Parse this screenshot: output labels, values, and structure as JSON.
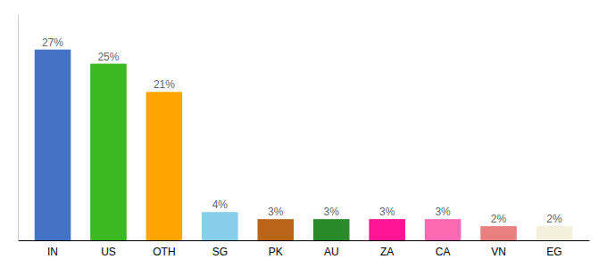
{
  "chart_data": {
    "type": "bar",
    "categories": [
      "IN",
      "US",
      "OTH",
      "SG",
      "PK",
      "AU",
      "ZA",
      "CA",
      "VN",
      "EG"
    ],
    "values": [
      27,
      25,
      21,
      4,
      3,
      3,
      3,
      3,
      2,
      2
    ],
    "value_labels": [
      "27%",
      "25%",
      "21%",
      "4%",
      "3%",
      "3%",
      "3%",
      "3%",
      "2%",
      "2%"
    ],
    "colors": [
      "#4472C4",
      "#3CB820",
      "#FFA500",
      "#87CEEB",
      "#B8651A",
      "#2A8A2A",
      "#FF1493",
      "#FF69B4",
      "#E88080",
      "#F5F0DC"
    ],
    "ylim": [
      0,
      32
    ],
    "data_labels": true,
    "grid": false,
    "tick_labels": "x"
  }
}
